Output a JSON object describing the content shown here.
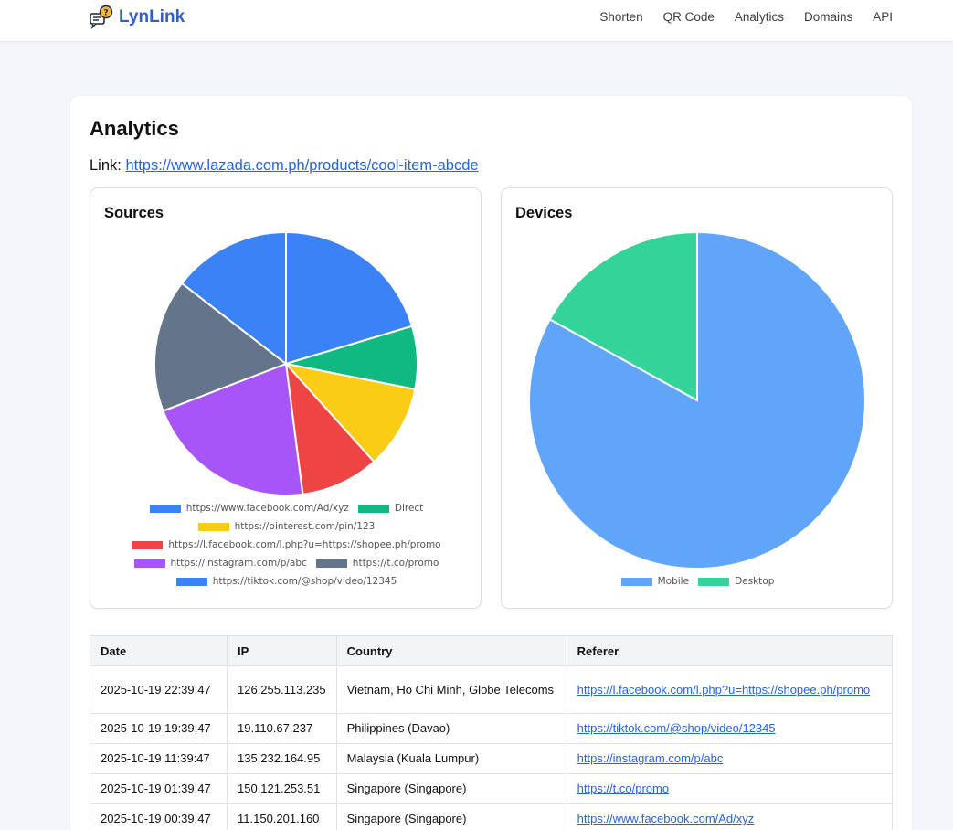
{
  "brand": {
    "name": "LynLink"
  },
  "nav": [
    "Shorten",
    "QR Code",
    "Analytics",
    "Domains",
    "API"
  ],
  "page": {
    "title": "Analytics",
    "link_label": "Link:",
    "link_url": "https://www.lazada.com.ph/products/cool-item-abcde"
  },
  "sources": {
    "title": "Sources",
    "chart_data": {
      "type": "pie",
      "title": "Sources",
      "labels": [
        "https://www.facebook.com/Ad/xyz",
        "Direct",
        "https://pinterest.com/pin/123",
        "https://l.facebook.com/l.php?u=https://shopee.ph/promo",
        "https://instagram.com/p/abc",
        "https://t.co/promo",
        "https://tiktok.com/@shop/video/12345"
      ],
      "values": [
        19.5,
        7.4,
        9.8,
        9.2,
        20.3,
        15.6,
        13.9
      ],
      "colors": [
        "#3b82f6",
        "#10b981",
        "#facc15",
        "#ef4444",
        "#a855f7",
        "#64748b",
        "#3b82f6"
      ],
      "legend": "bottom"
    }
  },
  "devices": {
    "title": "Devices",
    "chart_data": {
      "type": "pie",
      "title": "Devices",
      "labels": [
        "Mobile",
        "Desktop"
      ],
      "values": [
        83,
        17
      ],
      "colors": [
        "#60a5fa",
        "#34d399"
      ],
      "legend": "bottom"
    }
  },
  "table": {
    "headers": [
      "Date",
      "IP",
      "Country",
      "Referer"
    ],
    "rows": [
      [
        "2025-10-19 22:39:47",
        "126.255.113.235",
        "Vietnam, Ho Chi Minh, Globe Telecoms",
        "https://l.facebook.com/l.php?u=https://shopee.ph/promo"
      ],
      [
        "2025-10-19 19:39:47",
        "19.110.67.237",
        "Philippines (Davao)",
        "https://tiktok.com/@shop/video/12345"
      ],
      [
        "2025-10-19 11:39:47",
        "135.232.164.95",
        "Malaysia (Kuala Lumpur)",
        "https://instagram.com/p/abc"
      ],
      [
        "2025-10-19 01:39:47",
        "150.121.253.51",
        "Singapore (Singapore)",
        "https://t.co/promo"
      ],
      [
        "2025-10-19 00:39:47",
        "11.150.201.160",
        "Singapore (Singapore)",
        "https://www.facebook.com/Ad/xyz"
      ]
    ]
  }
}
